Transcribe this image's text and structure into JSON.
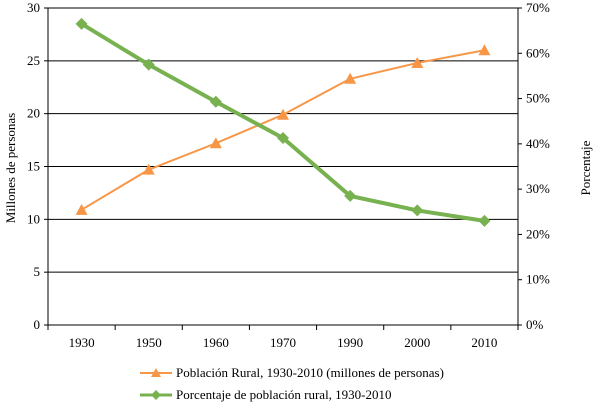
{
  "chart_data": {
    "type": "line",
    "categories": [
      "1930",
      "1950",
      "1960",
      "1970",
      "1990",
      "2000",
      "2010"
    ],
    "series": [
      {
        "name": "Población Rural, 1930-2010 (millones de personas)",
        "axis": "left",
        "color": "#f79646",
        "marker": "triangle",
        "values": [
          10.9,
          14.7,
          17.2,
          19.9,
          23.3,
          24.8,
          26.0
        ]
      },
      {
        "name": "Porcentaje de población rural, 1930-2010",
        "axis": "right",
        "color": "#77b150",
        "marker": "diamond",
        "values": [
          66.5,
          57.5,
          49.3,
          41.3,
          28.5,
          25.3,
          23.0
        ]
      }
    ],
    "ylabel": "Millones de personas",
    "ylabel_right": "Porcentaje",
    "ylim": [
      0,
      30
    ],
    "ylim_right": [
      0,
      70
    ],
    "yticks": [
      "0",
      "5",
      "10",
      "15",
      "20",
      "25",
      "30"
    ],
    "yticks_right": [
      "0%",
      "10%",
      "20%",
      "30%",
      "40%",
      "50%",
      "60%",
      "70%"
    ],
    "grid": true,
    "legend_position": "bottom"
  }
}
